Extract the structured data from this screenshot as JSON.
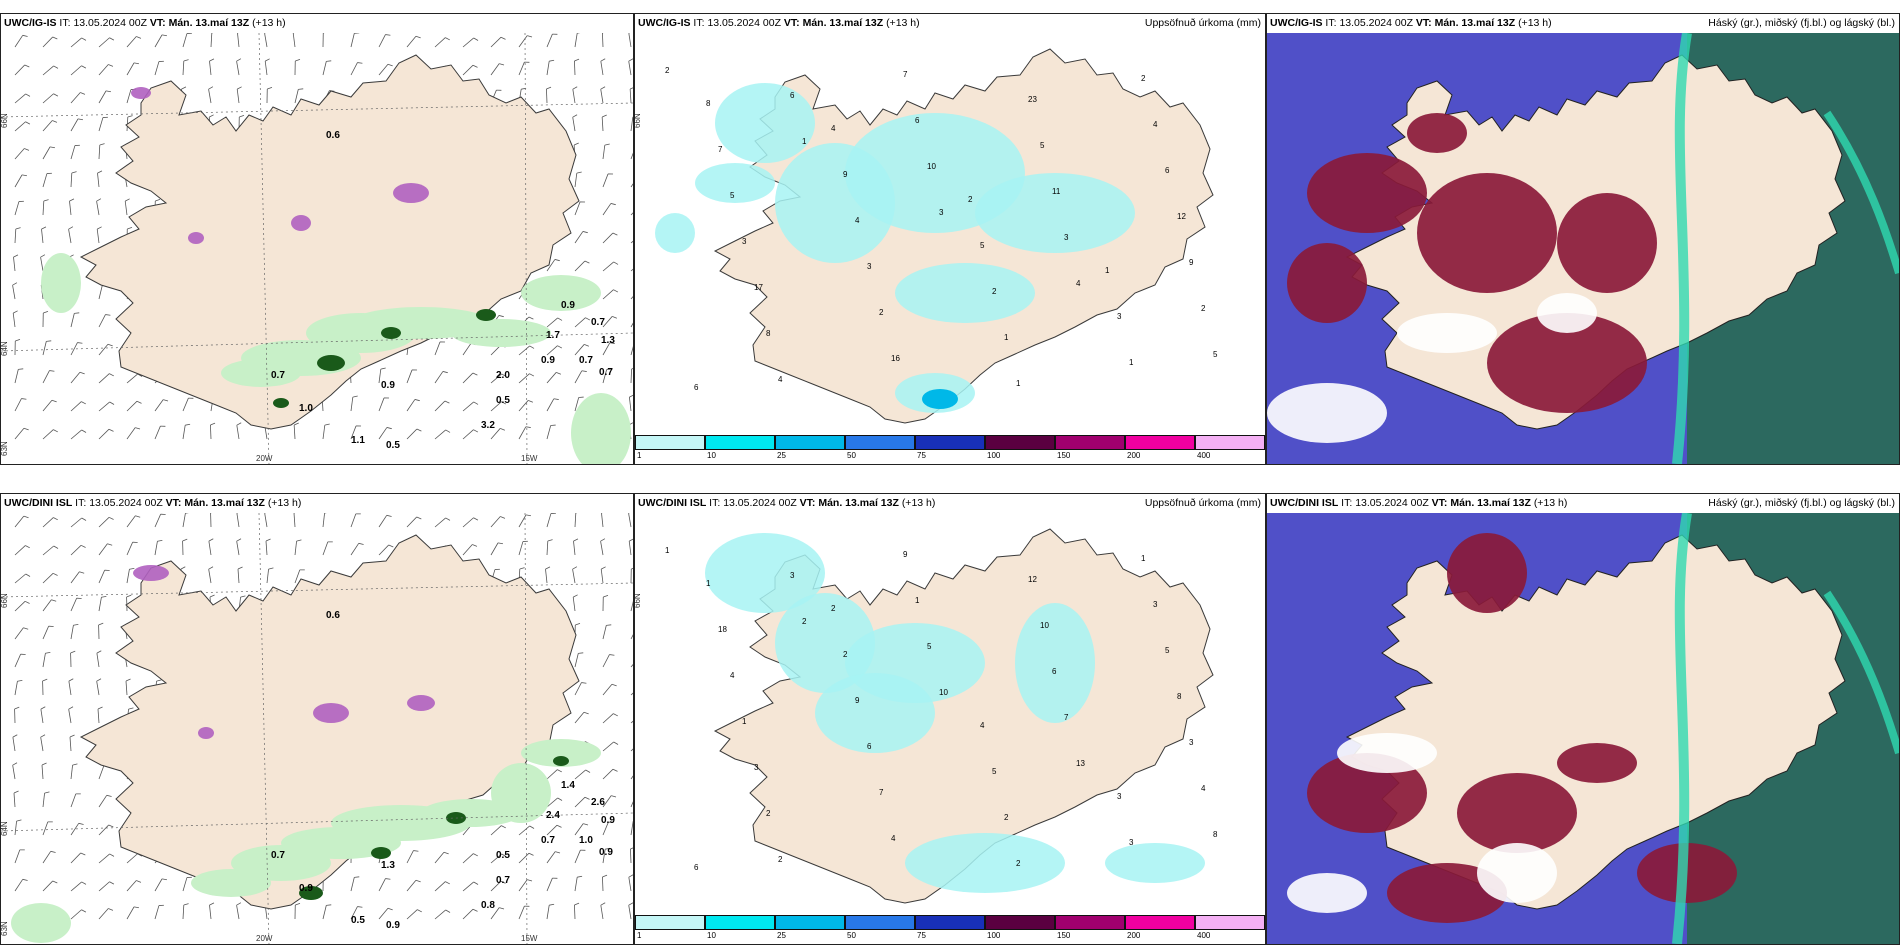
{
  "rows": [
    {
      "model": "UWC/IG-IS",
      "it_label": "IT:",
      "it_value": "13.05.2024 00Z",
      "vt_label": "VT:",
      "vt_value": "Mán. 13.maí 13Z",
      "lead": "(+13 h)"
    },
    {
      "model": "UWC/DINI ISL",
      "it_label": "IT:",
      "it_value": "13.05.2024 00Z",
      "vt_label": "VT:",
      "vt_value": "Mán. 13.maí 13Z",
      "lead": "(+13 h)"
    }
  ],
  "titles": {
    "precip": "Uppsöfnuð úrkoma (mm)",
    "clouds": "Háský (gr.), miðský (fj.bl.) og lágský (bl.)"
  },
  "axes": {
    "lat66": "66N",
    "lat64": "64N",
    "lat63": "63N",
    "lon20": "20W",
    "lon15": "15W"
  },
  "legend": {
    "ticks": [
      "1",
      "10",
      "25",
      "50",
      "75",
      "100",
      "150",
      "200",
      "400"
    ],
    "colors": [
      "#c4f6f6",
      "#00e8f0",
      "#00b8e8",
      "#2878e8",
      "#1830b8",
      "#5a0040",
      "#a0006e",
      "#f000a0",
      "#f4b0f4"
    ]
  },
  "panel1_labels_top": [
    "0.6",
    "1.0",
    "0.7",
    "1.1",
    "0.9",
    "0.5",
    "3.2",
    "0.5",
    "2.0",
    "0.9",
    "0.7",
    "0.7",
    "1.3",
    "0.9",
    "1.7",
    "0.7"
  ],
  "panel1_labels_bottom": [
    "0.6",
    "0.9",
    "0.7",
    "0.5",
    "1.3",
    "0.9",
    "0.8",
    "0.7",
    "0.5",
    "0.7",
    "1.0",
    "2.6",
    "0.9",
    "1.4",
    "2.4",
    "0.9"
  ],
  "panel2_labels_top": [
    "2",
    "1",
    "3",
    "4",
    "5",
    "6",
    "10",
    "3",
    "2",
    "4",
    "6",
    "11",
    "9",
    "8",
    "7",
    "5",
    "12",
    "17",
    "16",
    "23",
    "6",
    "3",
    "2",
    "1",
    "4",
    "5",
    "3",
    "1",
    "2",
    "7",
    "4",
    "2",
    "1",
    "8",
    "9",
    "5",
    "3",
    "6",
    "4",
    "2",
    "1"
  ],
  "panel2_labels_bottom": [
    "1",
    "2",
    "10",
    "13",
    "8",
    "3",
    "5",
    "7",
    "4",
    "2",
    "1",
    "6",
    "3",
    "2",
    "9",
    "10",
    "8",
    "3",
    "4",
    "12",
    "5",
    "1",
    "7",
    "2",
    "3",
    "4",
    "6",
    "2",
    "1",
    "18",
    "9",
    "5",
    "3",
    "1",
    "2",
    "4",
    "3",
    "6",
    "2"
  ],
  "colors": {
    "land": "#f5e6d6",
    "coast": "#3a3a3a",
    "precip_light": "#a7f3f3",
    "green_light": "#c8f0c8",
    "green_dark": "#1a5a1a",
    "purple": "#b060c0",
    "cloud_low": "#5050c8",
    "cloud_mid": "#8a1a3a",
    "cloud_high": "#1a8060"
  }
}
